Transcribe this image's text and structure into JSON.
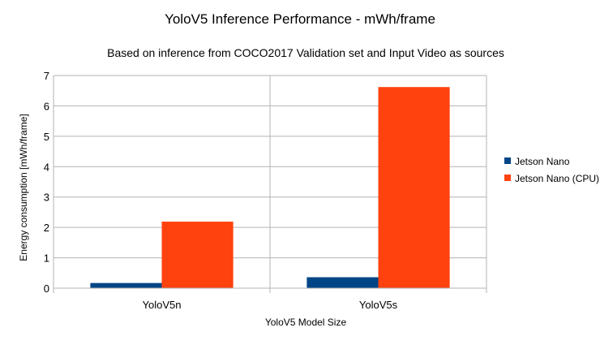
{
  "chart_data": {
    "type": "bar",
    "title": "YoloV5 Inference Performance - mWh/frame",
    "subtitle": "Based on inference from COCO2017 Validation set and Input Video as sources",
    "xlabel": "YoloV5 Model Size",
    "ylabel": "Energy consumption [mWh/frame]",
    "categories": [
      "YoloV5n",
      "YoloV5s"
    ],
    "series": [
      {
        "name": "Jetson Nano",
        "color": "#004586",
        "values": [
          0.17,
          0.36
        ]
      },
      {
        "name": "Jetson Nano (CPU)",
        "color": "#ff420e",
        "values": [
          2.19,
          6.62
        ]
      }
    ],
    "ylim": [
      0,
      7
    ],
    "yticks": [
      "0",
      "1",
      "2",
      "3",
      "4",
      "5",
      "6",
      "7"
    ],
    "grid": true,
    "legend": "right"
  }
}
